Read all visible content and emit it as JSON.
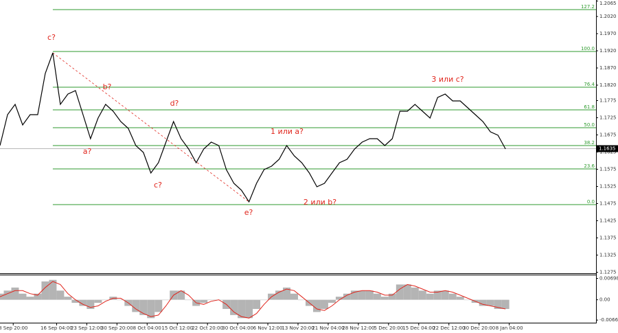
{
  "chart_data": [
    {
      "type": "line",
      "color": "#000000",
      "x": [
        0,
        4,
        8,
        12,
        16,
        20,
        24,
        28,
        32,
        36,
        40,
        44,
        48,
        52,
        56,
        60,
        64,
        68,
        72,
        76,
        80,
        84,
        88,
        92,
        96,
        100,
        104,
        108,
        112,
        116,
        120,
        124,
        128,
        132,
        136,
        140,
        144,
        148,
        152,
        156,
        160,
        164,
        168,
        172,
        176,
        180,
        184,
        188,
        192,
        196,
        200,
        204,
        208,
        212,
        216,
        220,
        224,
        228,
        232,
        236,
        240,
        244,
        248,
        252,
        256,
        260,
        264,
        268
      ],
      "values": [
        1.1644,
        1.1734,
        1.1764,
        1.1704,
        1.1734,
        1.1734,
        1.1854,
        1.1914,
        1.1764,
        1.1794,
        1.1804,
        1.1734,
        1.1664,
        1.1724,
        1.1764,
        1.1744,
        1.1714,
        1.1694,
        1.1644,
        1.1624,
        1.1564,
        1.1594,
        1.1654,
        1.1714,
        1.1664,
        1.1634,
        1.1594,
        1.1634,
        1.1654,
        1.1644,
        1.1574,
        1.1534,
        1.1514,
        1.148,
        1.1534,
        1.1574,
        1.1584,
        1.1604,
        1.1644,
        1.1614,
        1.1594,
        1.1564,
        1.1524,
        1.1534,
        1.1564,
        1.1594,
        1.1604,
        1.1634,
        1.1654,
        1.1664,
        1.1664,
        1.1644,
        1.1664,
        1.1744,
        1.1744,
        1.1764,
        1.1744,
        1.1724,
        1.1784,
        1.1794,
        1.1774,
        1.1774,
        1.1754,
        1.1734,
        1.1714,
        1.1684,
        1.1674,
        1.1634
      ],
      "xlim": [
        0,
        316
      ],
      "ylim": [
        1.1272,
        1.2068
      ],
      "yticks": [
        1.2065,
        {
          "value": 1.202,
          "label": "1.2020"
        },
        {
          "value": 1.197,
          "label": "1.1970"
        },
        {
          "value": 1.192,
          "label": "1.1920"
        },
        {
          "value": 1.187,
          "label": "1.1870"
        },
        {
          "value": 1.182,
          "label": "1.1820"
        },
        1.1775,
        1.1725,
        1.1675,
        1.1625,
        1.1575,
        1.1525,
        1.1475,
        1.1425,
        1.1375,
        1.1325,
        1.1275
      ],
      "current_price": 1.1635,
      "level_color": "#2e9a2e",
      "levels": [
        {
          "label": "127.2",
          "value": 1.204
        },
        {
          "label": "100.0",
          "value": 1.1918
        },
        {
          "label": "76.4",
          "value": 1.1814
        },
        {
          "label": "61.8",
          "value": 1.1748
        },
        {
          "label": "50.0",
          "value": 1.1696
        },
        {
          "label": "38.2",
          "value": 1.1644
        },
        {
          "label": "23.6",
          "value": 1.1576
        },
        {
          "label": "0.0",
          "value": 1.1472
        }
      ],
      "annotation_color": "#e0241b",
      "annotations": [
        "c?",
        "b?",
        "d?",
        "a?",
        "c?",
        "e?",
        "1 или a?",
        "2 или b?",
        "3 или c?"
      ]
    },
    {
      "type": "bar",
      "color": "#b4b4b4",
      "line_color": "#e0241b",
      "x": [
        0,
        4,
        8,
        12,
        16,
        20,
        24,
        28,
        32,
        36,
        40,
        44,
        48,
        52,
        56,
        60,
        64,
        68,
        72,
        76,
        80,
        84,
        88,
        92,
        96,
        100,
        104,
        108,
        112,
        116,
        120,
        124,
        128,
        132,
        136,
        140,
        144,
        148,
        152,
        156,
        160,
        164,
        168,
        172,
        176,
        180,
        184,
        188,
        192,
        196,
        200,
        204,
        208,
        212,
        216,
        220,
        224,
        228,
        232,
        236,
        240,
        244,
        248,
        252,
        256,
        260,
        264,
        268
      ],
      "values": [
        0.002,
        0.003,
        0.004,
        0.002,
        0.001,
        0.002,
        0.006,
        0.0065,
        0.003,
        0.001,
        -0.001,
        -0.002,
        -0.003,
        -0.001,
        0,
        0.001,
        0,
        -0.002,
        -0.004,
        -0.005,
        -0.006,
        -0.004,
        0,
        0.003,
        0.003,
        0,
        -0.002,
        -0.001,
        0,
        0,
        -0.003,
        -0.005,
        -0.006,
        -0.006,
        -0.003,
        0,
        0.002,
        0.003,
        0.004,
        0.002,
        0,
        -0.002,
        -0.004,
        -0.003,
        -0.001,
        0.001,
        0.002,
        0.003,
        0.003,
        0.003,
        0.002,
        0.001,
        0.002,
        0.005,
        0.005,
        0.004,
        0.003,
        0.002,
        0.003,
        0.003,
        0.002,
        0.001,
        0,
        -0.001,
        -0.002,
        -0.002,
        -0.003,
        -0.003
      ],
      "line_values": [
        0.001,
        0.002,
        0.003,
        0.003,
        0.002,
        0.0015,
        0.004,
        0.006,
        0.005,
        0.002,
        0,
        -0.0015,
        -0.0025,
        -0.002,
        -0.0005,
        0.0005,
        0.0005,
        -0.001,
        -0.003,
        -0.0045,
        -0.0055,
        -0.005,
        -0.002,
        0.0015,
        0.003,
        0.0015,
        -0.001,
        -0.0015,
        -0.0005,
        0,
        -0.0015,
        -0.004,
        -0.0055,
        -0.006,
        -0.0045,
        -0.0015,
        0.001,
        0.0025,
        0.0035,
        0.003,
        0.001,
        -0.001,
        -0.003,
        -0.0035,
        -0.002,
        0,
        0.0015,
        0.0025,
        0.003,
        0.003,
        0.0025,
        0.0015,
        0.0015,
        0.0035,
        0.005,
        0.0045,
        0.0035,
        0.0025,
        0.0025,
        0.003,
        0.0025,
        0.0015,
        0.0005,
        -0.0005,
        -0.0015,
        -0.002,
        -0.0025,
        -0.003
      ],
      "xlim": [
        0,
        316
      ],
      "ylim": [
        -0.0075,
        0.008
      ],
      "yticks": [
        0.00698,
        {
          "value": 0,
          "label": "0.00"
        },
        -0.00664
      ],
      "xticks": [
        {
          "value": 7,
          "label": "8 Sep 20:00"
        },
        {
          "value": 30,
          "label": "16 Sep 04:00"
        },
        {
          "value": 46,
          "label": "23 Sep 12:00"
        },
        {
          "value": 62,
          "label": "30 Sep 20:00"
        },
        {
          "value": 78,
          "label": "8 Oct 04:00"
        },
        {
          "value": 94,
          "label": "15 Oct 12:00"
        },
        {
          "value": 110,
          "label": "22 Oct 20:00"
        },
        {
          "value": 126,
          "label": "30 Oct 04:00"
        },
        {
          "value": 142,
          "label": "6 Nov 12:00"
        },
        {
          "value": 158,
          "label": "13 Nov 20:00"
        },
        {
          "value": 174,
          "label": "21 Nov 04:00"
        },
        {
          "value": 190,
          "label": "28 Nov 12:00"
        },
        {
          "value": 206,
          "label": "5 Dec 20:00"
        },
        {
          "value": 222,
          "label": "15 Dec 04:00"
        },
        {
          "value": 238,
          "label": "22 Dec 12:00"
        },
        {
          "value": 254,
          "label": "30 Dec 20:00"
        },
        {
          "value": 270,
          "label": "8 Jan 04:00"
        }
      ]
    }
  ]
}
